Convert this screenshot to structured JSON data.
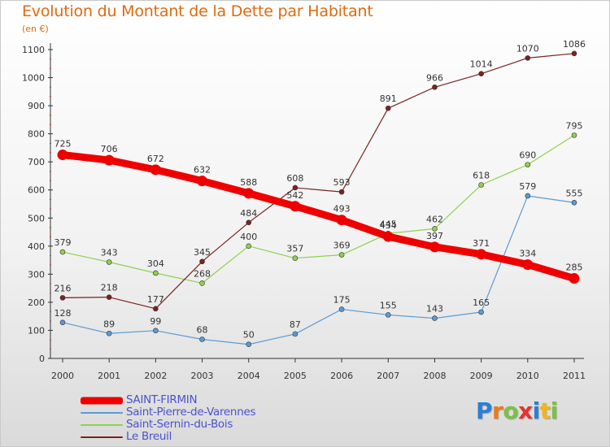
{
  "title": "Evolution du Montant de la Dette par Habitant",
  "subtitle": "(en €)",
  "brand": {
    "letters": [
      {
        "char": "P",
        "color": "#2a7fd4"
      },
      {
        "char": "r",
        "color": "#e87a1e"
      },
      {
        "char": "o",
        "color": "#7bc143"
      },
      {
        "char": "x",
        "color": "#e3342f"
      },
      {
        "char": "i",
        "color": "#2a7fd4"
      },
      {
        "char": "t",
        "color": "#f2b51b"
      },
      {
        "char": "i",
        "color": "#7bc143"
      }
    ]
  },
  "chart_data": {
    "type": "line",
    "x": [
      "2000",
      "2001",
      "2002",
      "2003",
      "2004",
      "2005",
      "2006",
      "2007",
      "2008",
      "2009",
      "2010",
      "2011"
    ],
    "y_ticks": [
      0,
      100,
      200,
      300,
      400,
      500,
      600,
      700,
      800,
      900,
      1000,
      1100
    ],
    "ylim": [
      0,
      1100
    ],
    "grid": false,
    "legend_position": "bottom-left",
    "series": [
      {
        "name": "SAINT-FIRMIN",
        "color": "#ee0000",
        "emphasis": true,
        "values": [
          725,
          706,
          672,
          632,
          588,
          542,
          493,
          434,
          397,
          371,
          334,
          285
        ]
      },
      {
        "name": "Saint-Pierre-de-Varennes",
        "color": "#5b9bd5",
        "values": [
          128,
          89,
          99,
          68,
          50,
          87,
          175,
          155,
          143,
          165,
          579,
          555
        ]
      },
      {
        "name": "Saint-Sernin-du-Bois",
        "color": "#8fd14f",
        "values": [
          379,
          343,
          304,
          268,
          400,
          357,
          369,
          445,
          462,
          618,
          690,
          795
        ]
      },
      {
        "name": "Le Breuil",
        "color": "#7b2121",
        "values": [
          216,
          218,
          177,
          345,
          484,
          608,
          593,
          891,
          966,
          1014,
          1070,
          1086
        ]
      }
    ]
  }
}
